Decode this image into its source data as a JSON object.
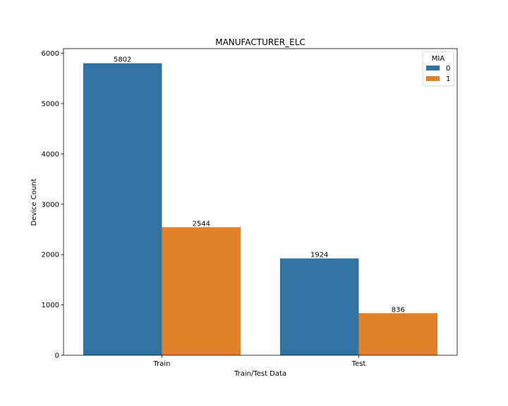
{
  "chart_data": {
    "type": "bar",
    "title": "MANUFACTURER_ELC",
    "xlabel": "Train/Test Data",
    "ylabel": "Device Count",
    "categories": [
      "Train",
      "Test"
    ],
    "series": [
      {
        "name": "0",
        "values": [
          5802,
          1924
        ],
        "color": "#3274a1"
      },
      {
        "name": "1",
        "values": [
          2544,
          836
        ],
        "color": "#e1812c"
      }
    ],
    "ylim": [
      0,
      6092
    ],
    "yticks": [
      0,
      1000,
      2000,
      3000,
      4000,
      5000,
      6000
    ],
    "legend": {
      "title": "MIA",
      "placement": "top-right"
    },
    "grid": false
  }
}
